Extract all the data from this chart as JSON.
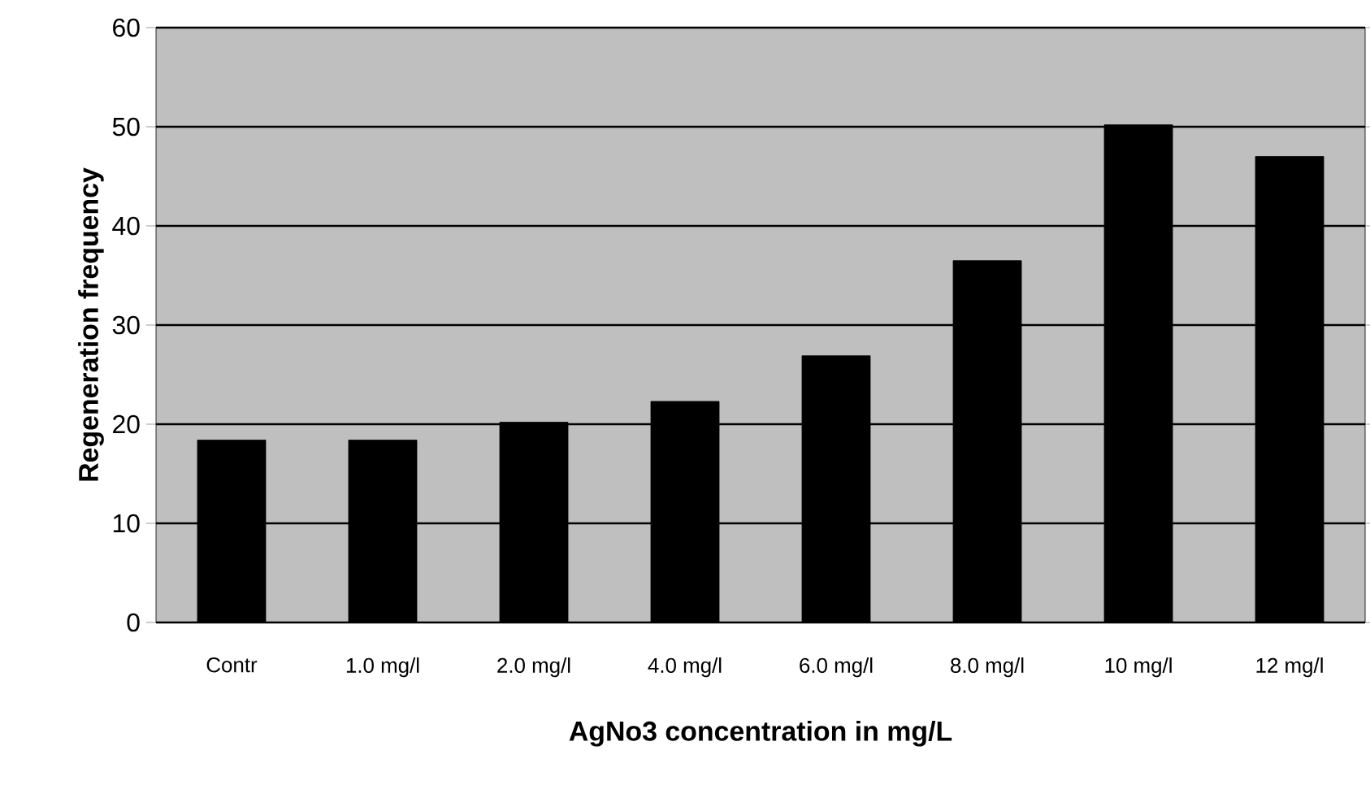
{
  "chart_data": {
    "type": "bar",
    "xlabel": "AgNo3 concentration in mg/L",
    "ylabel": "Regeneration frequency",
    "categories": [
      "Contr",
      "1.0 mg/l",
      "2.0 mg/l",
      "4.0 mg/l",
      "6.0 mg/l",
      "8.0 mg/l",
      "10 mg/l",
      "12 mg/l"
    ],
    "values": [
      18.4,
      18.4,
      20.2,
      22.3,
      26.9,
      36.5,
      50.2,
      47.0
    ],
    "color": "#000000",
    "ylim": [
      0,
      60
    ],
    "yticks": [
      0,
      10,
      20,
      30,
      40,
      50,
      60
    ],
    "grid": "y"
  }
}
